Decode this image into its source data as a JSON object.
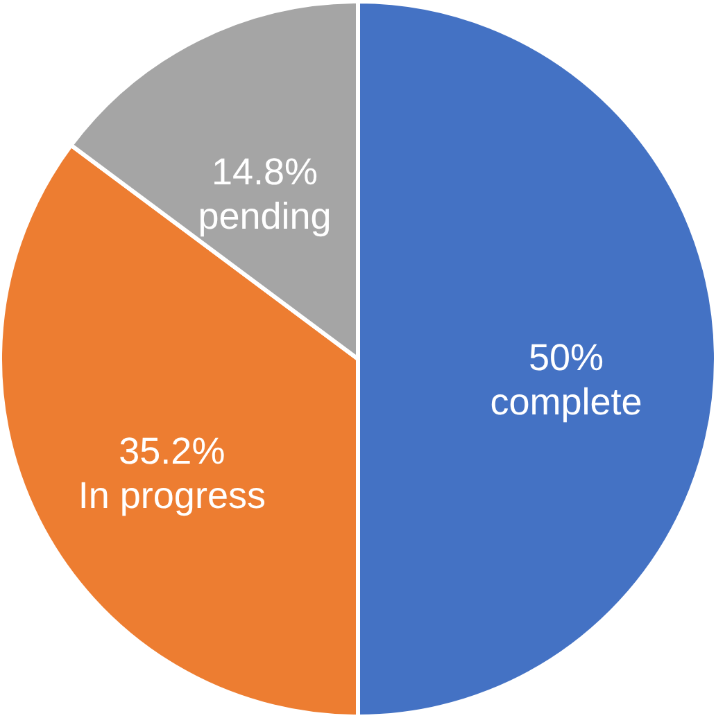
{
  "chart_data": {
    "type": "pie",
    "categories": [
      "complete",
      "In progress",
      "pending"
    ],
    "values": [
      50,
      35.2,
      14.8
    ],
    "colors": [
      "#4472c4",
      "#ed7d31",
      "#a5a5a5"
    ],
    "value_labels": [
      "50%",
      "35.2%",
      "14.8%"
    ]
  }
}
